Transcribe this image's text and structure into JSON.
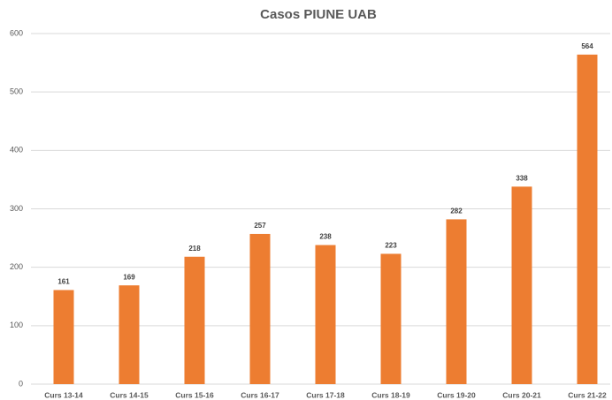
{
  "chart_data": {
    "type": "bar",
    "title": "Casos PIUNE UAB",
    "categories": [
      "Curs 13-14",
      "Curs 14-15",
      "Curs 15-16",
      "Curs 16-17",
      "Curs 17-18",
      "Curs 18-19",
      "Curs 19-20",
      "Curs 20-21",
      "Curs 21-22"
    ],
    "values": [
      161,
      169,
      218,
      257,
      238,
      223,
      282,
      338,
      564
    ],
    "color": "#ed7d31",
    "ylim": [
      0,
      600
    ],
    "yticks": [
      0,
      100,
      200,
      300,
      400,
      500,
      600
    ],
    "grid": true
  }
}
